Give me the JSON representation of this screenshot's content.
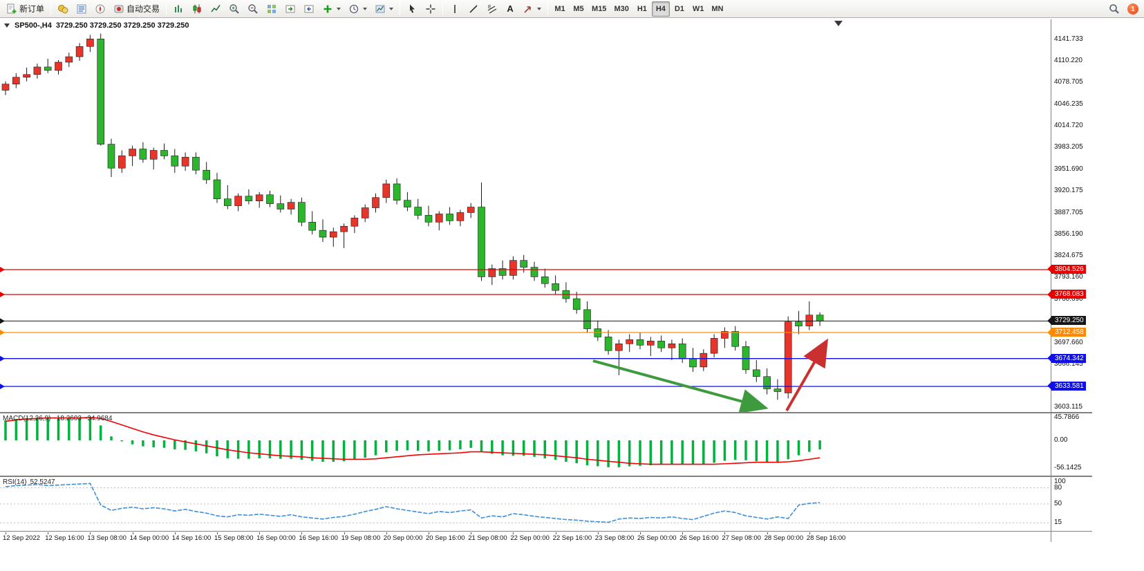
{
  "toolbar": {
    "new_order": "新订单",
    "auto_trading": "自动交易",
    "text_tool": "A",
    "timeframes": [
      "M1",
      "M5",
      "M15",
      "M30",
      "H1",
      "H4",
      "D1",
      "W1",
      "MN"
    ],
    "active_timeframe": "H4",
    "notification_count": "1"
  },
  "chart": {
    "title": "SP500-,H4",
    "ohlc": "3729.250 3729.250 3729.250 3729.250",
    "colors": {
      "up": "#e6352b",
      "down": "#2db52d",
      "wick": "#1a1a1a",
      "arrow_green": "#3d9a3d",
      "arrow_red": "#cb3030",
      "macd_hist": "#00b33c",
      "macd_signal": "#f40000",
      "rsi_line": "#3b8ee0"
    },
    "price_scale": [
      "4141.733",
      "4110.220",
      "4078.705",
      "4046.235",
      "4014.720",
      "3983.205",
      "3951.690",
      "3920.175",
      "3887.705",
      "3856.190",
      "3824.675",
      "3793.160",
      "3760.690",
      "3697.660",
      "3666.145",
      "3603.115"
    ],
    "hlines": [
      {
        "price": "3804.526",
        "value": 3804.526,
        "color": "#e80000"
      },
      {
        "price": "3768.083",
        "value": 3768.083,
        "color": "#e80000"
      },
      {
        "price": "3729.250",
        "value": 3729.25,
        "color": "#161616",
        "type": "current"
      },
      {
        "price": "3712.458",
        "value": 3712.458,
        "color": "#ff8a00"
      },
      {
        "price": "3674.342",
        "value": 3674.342,
        "color": "#0f0fe8"
      },
      {
        "price": "3633.581",
        "value": 3633.581,
        "color": "#0f0fe8"
      }
    ],
    "candles": [
      [
        4067,
        4080,
        4060,
        4076
      ],
      [
        4076,
        4092,
        4070,
        4086
      ],
      [
        4086,
        4100,
        4080,
        4090
      ],
      [
        4090,
        4106,
        4084,
        4101
      ],
      [
        4101,
        4113,
        4092,
        4096
      ],
      [
        4096,
        4111,
        4090,
        4108
      ],
      [
        4108,
        4122,
        4101,
        4116
      ],
      [
        4116,
        4136,
        4110,
        4131
      ],
      [
        4131,
        4148,
        4123,
        4142
      ],
      [
        4142,
        4150,
        3986,
        3988
      ],
      [
        3988,
        3996,
        3940,
        3953
      ],
      [
        3953,
        3979,
        3946,
        3971
      ],
      [
        3971,
        3986,
        3956,
        3981
      ],
      [
        3981,
        3991,
        3961,
        3966
      ],
      [
        3966,
        3983,
        3951,
        3979
      ],
      [
        3979,
        3989,
        3966,
        3971
      ],
      [
        3971,
        3981,
        3946,
        3956
      ],
      [
        3956,
        3976,
        3949,
        3969
      ],
      [
        3969,
        3976,
        3944,
        3950
      ],
      [
        3950,
        3962,
        3930,
        3936
      ],
      [
        3936,
        3946,
        3902,
        3908
      ],
      [
        3908,
        3928,
        3893,
        3898
      ],
      [
        3898,
        3916,
        3890,
        3912
      ],
      [
        3912,
        3922,
        3900,
        3905
      ],
      [
        3905,
        3918,
        3895,
        3914
      ],
      [
        3914,
        3920,
        3896,
        3901
      ],
      [
        3901,
        3913,
        3888,
        3893
      ],
      [
        3893,
        3908,
        3885,
        3903
      ],
      [
        3903,
        3910,
        3868,
        3874
      ],
      [
        3874,
        3890,
        3856,
        3862
      ],
      [
        3862,
        3878,
        3845,
        3852
      ],
      [
        3852,
        3866,
        3838,
        3860
      ],
      [
        3860,
        3872,
        3836,
        3868
      ],
      [
        3868,
        3884,
        3858,
        3880
      ],
      [
        3880,
        3900,
        3874,
        3895
      ],
      [
        3895,
        3916,
        3888,
        3910
      ],
      [
        3910,
        3936,
        3902,
        3930
      ],
      [
        3930,
        3938,
        3900,
        3906
      ],
      [
        3906,
        3918,
        3890,
        3896
      ],
      [
        3896,
        3908,
        3878,
        3884
      ],
      [
        3884,
        3898,
        3868,
        3874
      ],
      [
        3874,
        3890,
        3862,
        3886
      ],
      [
        3886,
        3896,
        3870,
        3876
      ],
      [
        3876,
        3892,
        3868,
        3888
      ],
      [
        3888,
        3902,
        3880,
        3896
      ],
      [
        3896,
        3932,
        3788,
        3794
      ],
      [
        3794,
        3812,
        3782,
        3806
      ],
      [
        3806,
        3818,
        3790,
        3796
      ],
      [
        3796,
        3824,
        3790,
        3818
      ],
      [
        3818,
        3826,
        3800,
        3808
      ],
      [
        3808,
        3816,
        3788,
        3794
      ],
      [
        3794,
        3806,
        3778,
        3784
      ],
      [
        3784,
        3796,
        3768,
        3774
      ],
      [
        3774,
        3786,
        3756,
        3762
      ],
      [
        3762,
        3772,
        3740,
        3746
      ],
      [
        3746,
        3758,
        3712,
        3718
      ],
      [
        3718,
        3730,
        3700,
        3706
      ],
      [
        3706,
        3716,
        3680,
        3686
      ],
      [
        3686,
        3702,
        3650,
        3696
      ],
      [
        3696,
        3710,
        3684,
        3702
      ],
      [
        3702,
        3712,
        3688,
        3694
      ],
      [
        3694,
        3706,
        3678,
        3700
      ],
      [
        3700,
        3708,
        3684,
        3690
      ],
      [
        3690,
        3702,
        3672,
        3696
      ],
      [
        3696,
        3704,
        3668,
        3674
      ],
      [
        3674,
        3690,
        3655,
        3662
      ],
      [
        3662,
        3688,
        3656,
        3682
      ],
      [
        3682,
        3710,
        3676,
        3704
      ],
      [
        3704,
        3720,
        3690,
        3714
      ],
      [
        3714,
        3722,
        3686,
        3692
      ],
      [
        3692,
        3700,
        3652,
        3658
      ],
      [
        3658,
        3672,
        3640,
        3648
      ],
      [
        3648,
        3660,
        3622,
        3630
      ],
      [
        3630,
        3644,
        3614,
        3626
      ],
      [
        3624,
        3736,
        3616,
        3728
      ],
      [
        3728,
        3744,
        3710,
        3722
      ],
      [
        3722,
        3758,
        3716,
        3738
      ],
      [
        3738,
        3742,
        3722,
        3729.25
      ]
    ]
  },
  "macd": {
    "name": "MACD(12,26,9)",
    "value_main": "-18.2603",
    "value_signal": "-34.9684",
    "scale": [
      "45.7866",
      "0.00",
      "-56.1425"
    ],
    "hist": [
      40,
      43,
      45,
      46,
      46,
      45,
      45,
      46,
      46,
      30,
      8,
      -2,
      -8,
      -12,
      -14,
      -15,
      -18,
      -19,
      -22,
      -26,
      -32,
      -36,
      -37,
      -37,
      -36,
      -36,
      -37,
      -37,
      -39,
      -41,
      -43,
      -43,
      -42,
      -39,
      -35,
      -30,
      -24,
      -21,
      -20,
      -21,
      -22,
      -21,
      -20,
      -18,
      -15,
      -22,
      -27,
      -30,
      -31,
      -31,
      -33,
      -36,
      -39,
      -43,
      -46,
      -50,
      -52,
      -54,
      -54,
      -52,
      -51,
      -50,
      -49,
      -48,
      -48,
      -49,
      -48,
      -45,
      -41,
      -39,
      -40,
      -42,
      -44,
      -44,
      -38,
      -30,
      -23,
      -18.26
    ],
    "signal": [
      38,
      41,
      43,
      44,
      45,
      45,
      45,
      45,
      46,
      44,
      38,
      31,
      24,
      17,
      11,
      6,
      1,
      -3,
      -7,
      -11,
      -15,
      -19,
      -22,
      -25,
      -27,
      -29,
      -31,
      -32,
      -33,
      -35,
      -36,
      -37,
      -38,
      -38,
      -38,
      -37,
      -35,
      -33,
      -31,
      -29,
      -28,
      -27,
      -26,
      -25,
      -23,
      -23,
      -24,
      -25,
      -26,
      -27,
      -28,
      -29,
      -31,
      -33,
      -35,
      -38,
      -40,
      -42,
      -44,
      -46,
      -47,
      -48,
      -48,
      -48,
      -48,
      -48,
      -48,
      -48,
      -47,
      -46,
      -45,
      -44,
      -44,
      -44,
      -43,
      -41,
      -38,
      -34.97
    ]
  },
  "rsi": {
    "name": "RSI(14)",
    "value": "52.5247",
    "scale": [
      {
        "t": "100",
        "v": 100
      },
      {
        "t": "80",
        "v": 80
      },
      {
        "t": "50",
        "v": 50
      },
      {
        "t": "15",
        "v": 15
      }
    ],
    "levels": [
      80,
      50,
      15
    ],
    "values": [
      82,
      84,
      85,
      86,
      84,
      85,
      86,
      87,
      88,
      48,
      38,
      42,
      44,
      41,
      43,
      41,
      37,
      40,
      36,
      33,
      28,
      26,
      30,
      29,
      31,
      29,
      27,
      30,
      26,
      24,
      22,
      25,
      27,
      31,
      36,
      40,
      45,
      41,
      38,
      35,
      32,
      36,
      34,
      37,
      39,
      24,
      28,
      26,
      32,
      30,
      27,
      25,
      23,
      21,
      20,
      18,
      17,
      16,
      22,
      24,
      23,
      25,
      24,
      26,
      23,
      21,
      27,
      33,
      37,
      34,
      28,
      25,
      22,
      26,
      23,
      48,
      51,
      52.52
    ]
  },
  "time_axis": [
    "12 Sep 2022",
    "12 Sep 16:00",
    "13 Sep 08:00",
    "14 Sep 00:00",
    "14 Sep 16:00",
    "15 Sep 08:00",
    "16 Sep 00:00",
    "16 Sep 16:00",
    "19 Sep 08:00",
    "20 Sep 00:00",
    "20 Sep 16:00",
    "21 Sep 08:00",
    "22 Sep 00:00",
    "22 Sep 16:00",
    "23 Sep 08:00",
    "26 Sep 00:00",
    "26 Sep 16:00",
    "27 Sep 08:00",
    "28 Sep 00:00",
    "28 Sep 16:00"
  ]
}
